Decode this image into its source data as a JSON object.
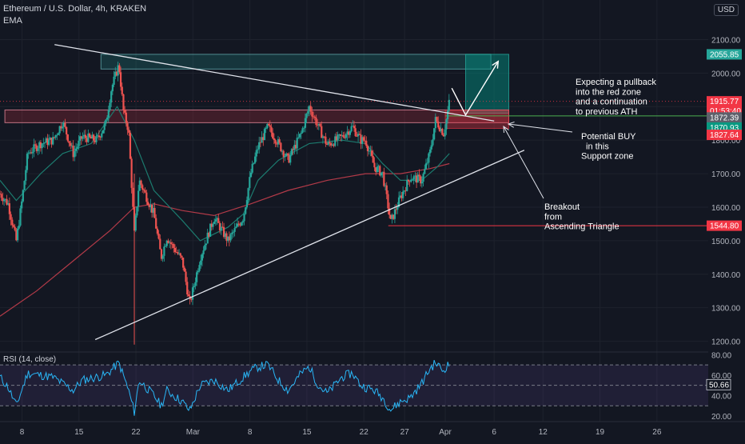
{
  "header": {
    "symbol": "Ethereum / U.S. Dollar, 4h, KRAKEN",
    "indicator": "EMA",
    "currency": "USD"
  },
  "chart_data": {
    "type": "candlestick",
    "price_axis": {
      "ticks": [
        "2100.00",
        "2000.00",
        "1900.00",
        "1800.00",
        "1700.00",
        "1600.00",
        "1500.00",
        "1400.00",
        "1300.00",
        "1200.00"
      ],
      "tick_values": [
        2100,
        2000,
        1900,
        1800,
        1700,
        1600,
        1500,
        1400,
        1300,
        1200
      ],
      "range": [
        1168,
        2218
      ]
    },
    "time_axis": {
      "ticks": [
        "8",
        "15",
        "22",
        "Mar",
        "8",
        "15",
        "22",
        "27",
        "Apr",
        "6",
        "12",
        "19",
        "26"
      ],
      "tick_days": [
        8,
        15,
        22,
        29,
        36,
        43,
        50,
        55,
        60,
        66,
        72,
        79,
        86
      ],
      "day_range": [
        5.3,
        92.3
      ],
      "note": "day 29 = Mar 1, day 60 = Apr 1 (Feb = days 1-28)"
    },
    "price_path": [
      {
        "day": 5.3,
        "price": 1640
      },
      {
        "day": 6.3,
        "price": 1610
      },
      {
        "day": 7.3,
        "price": 1500
      },
      {
        "day": 8.0,
        "price": 1620
      },
      {
        "day": 8.7,
        "price": 1760
      },
      {
        "day": 10.3,
        "price": 1790
      },
      {
        "day": 11.8,
        "price": 1800
      },
      {
        "day": 13.0,
        "price": 1855
      },
      {
        "day": 14.3,
        "price": 1760
      },
      {
        "day": 15.4,
        "price": 1810
      },
      {
        "day": 17.2,
        "price": 1800
      },
      {
        "day": 18.3,
        "price": 1850
      },
      {
        "day": 19.0,
        "price": 1955
      },
      {
        "day": 19.9,
        "price": 2025
      },
      {
        "day": 20.5,
        "price": 1880
      },
      {
        "day": 21.1,
        "price": 1830
      },
      {
        "day": 21.8,
        "price": 1520
      },
      {
        "day": 22.4,
        "price": 1680
      },
      {
        "day": 24.2,
        "price": 1580
      },
      {
        "day": 25.1,
        "price": 1450
      },
      {
        "day": 25.8,
        "price": 1510
      },
      {
        "day": 27.7,
        "price": 1440
      },
      {
        "day": 28.6,
        "price": 1310
      },
      {
        "day": 29.9,
        "price": 1450
      },
      {
        "day": 31.6,
        "price": 1570
      },
      {
        "day": 33.3,
        "price": 1500
      },
      {
        "day": 35.2,
        "price": 1570
      },
      {
        "day": 36.1,
        "price": 1700
      },
      {
        "day": 37.0,
        "price": 1780
      },
      {
        "day": 38.2,
        "price": 1840
      },
      {
        "day": 39.5,
        "price": 1790
      },
      {
        "day": 40.7,
        "price": 1740
      },
      {
        "day": 42.3,
        "price": 1820
      },
      {
        "day": 43.3,
        "price": 1900
      },
      {
        "day": 44.4,
        "price": 1840
      },
      {
        "day": 45.5,
        "price": 1785
      },
      {
        "day": 47.3,
        "price": 1810
      },
      {
        "day": 48.6,
        "price": 1840
      },
      {
        "day": 49.6,
        "price": 1800
      },
      {
        "day": 50.2,
        "price": 1800
      },
      {
        "day": 51.3,
        "price": 1720
      },
      {
        "day": 52.3,
        "price": 1700
      },
      {
        "day": 53.3,
        "price": 1555
      },
      {
        "day": 54.5,
        "price": 1630
      },
      {
        "day": 55.7,
        "price": 1690
      },
      {
        "day": 57.1,
        "price": 1680
      },
      {
        "day": 58.1,
        "price": 1760
      },
      {
        "day": 58.8,
        "price": 1860
      },
      {
        "day": 59.8,
        "price": 1820
      },
      {
        "day": 60.2,
        "price": 1870
      },
      {
        "day": 60.5,
        "price": 1916
      }
    ],
    "ema_short": [
      {
        "day": 5.3,
        "price": 1680
      },
      {
        "day": 7.3,
        "price": 1620
      },
      {
        "day": 10.3,
        "price": 1700
      },
      {
        "day": 13.0,
        "price": 1760
      },
      {
        "day": 16.5,
        "price": 1790
      },
      {
        "day": 19.7,
        "price": 1900
      },
      {
        "day": 21.8,
        "price": 1800
      },
      {
        "day": 24.2,
        "price": 1650
      },
      {
        "day": 27.7,
        "price": 1560
      },
      {
        "day": 29.9,
        "price": 1500
      },
      {
        "day": 33.3,
        "price": 1540
      },
      {
        "day": 35.2,
        "price": 1580
      },
      {
        "day": 37.0,
        "price": 1680
      },
      {
        "day": 39.5,
        "price": 1740
      },
      {
        "day": 43.3,
        "price": 1790
      },
      {
        "day": 47.3,
        "price": 1800
      },
      {
        "day": 50.2,
        "price": 1790
      },
      {
        "day": 52.3,
        "price": 1730
      },
      {
        "day": 54.5,
        "price": 1680
      },
      {
        "day": 57.1,
        "price": 1680
      },
      {
        "day": 59.0,
        "price": 1720
      },
      {
        "day": 60.5,
        "price": 1760
      }
    ],
    "ema_long": [
      {
        "day": 5.3,
        "price": 1275
      },
      {
        "day": 9.8,
        "price": 1350
      },
      {
        "day": 14.3,
        "price": 1440
      },
      {
        "day": 18.8,
        "price": 1530
      },
      {
        "day": 21.8,
        "price": 1600
      },
      {
        "day": 24.2,
        "price": 1610
      },
      {
        "day": 27.7,
        "price": 1590
      },
      {
        "day": 31.6,
        "price": 1575
      },
      {
        "day": 36.1,
        "price": 1610
      },
      {
        "day": 40.7,
        "price": 1650
      },
      {
        "day": 45.5,
        "price": 1680
      },
      {
        "day": 50.2,
        "price": 1700
      },
      {
        "day": 54.5,
        "price": 1700
      },
      {
        "day": 58.1,
        "price": 1715
      },
      {
        "day": 60.5,
        "price": 1730
      }
    ],
    "price_labels": [
      {
        "text": "2055.85",
        "value": 2055.85,
        "color": "#26a69a"
      },
      {
        "text": "1915.77",
        "value": 1915.77,
        "color": "#f23645"
      },
      {
        "text": "01:53:40",
        "value": 1895,
        "color": "#f23645"
      },
      {
        "text": "1872.39",
        "value": 1872.39,
        "color": "#5d606b"
      },
      {
        "text": "1870.93",
        "value": 1870.93,
        "color": "#089981"
      },
      {
        "text": "1827.64",
        "value": 1827.64,
        "color": "#f23645"
      },
      {
        "text": "1544.80",
        "value": 1544.8,
        "color": "#f23645"
      }
    ],
    "annotations": {
      "resistance_zone": {
        "day_from": 17.7,
        "day_to": 65.6,
        "price_from": 2012,
        "price_to": 2056
      },
      "support_zone": {
        "day_from": 5.9,
        "day_to": 67.8,
        "price_from": 1852,
        "price_to": 1890
      },
      "red_zone": {
        "day_from": 60.0,
        "day_to": 67.8,
        "price_from": 1835,
        "price_to": 1890
      },
      "target_box": {
        "day_from": 62.5,
        "day_to": 67.8,
        "price_from": 1880,
        "price_to": 2056
      },
      "horizontal_lines": [
        {
          "price": 1872.39,
          "day_from": 60.0,
          "color": "#4caf50"
        },
        {
          "price": 1544.8,
          "day_from": 53.0,
          "color": "#f23645"
        },
        {
          "price": 1915.77,
          "day_from": 5.3,
          "color": "#f23645",
          "dotted": true
        }
      ],
      "descending_line": [
        {
          "day": 12.0,
          "price": 2085
        },
        {
          "day": 66.0,
          "price": 1857
        }
      ],
      "ascending_line": [
        {
          "day": 17.0,
          "price": 1205
        },
        {
          "day": 69.7,
          "price": 1770
        }
      ],
      "projection": [
        {
          "day": 60.8,
          "price": 1955
        },
        {
          "day": 62.5,
          "price": 1875
        },
        {
          "day": 66.5,
          "price": 2035
        }
      ],
      "notes": [
        {
          "lines": [
            "Expecting a pullback",
            "into the red zone",
            "and a continuation",
            "to previous ATH"
          ]
        },
        {
          "lines": [
            "Potential BUY",
            "in this",
            "Support zone"
          ]
        },
        {
          "lines": [
            "Breakout",
            "from",
            "Ascending Triangle"
          ]
        }
      ]
    },
    "rsi": {
      "label": "RSI (14, close)",
      "ticks": [
        "80.00",
        "60.00",
        "40.00",
        "20.00"
      ],
      "tick_values": [
        80,
        60,
        40,
        20
      ],
      "range": [
        14.5,
        82.6
      ],
      "levels": [
        70,
        50,
        30
      ],
      "current": "50.66",
      "current_value": 50.66,
      "path": [
        {
          "day": 5.3,
          "price": 58
        },
        {
          "day": 6.3,
          "price": 48
        },
        {
          "day": 7.3,
          "price": 30
        },
        {
          "day": 8.7,
          "price": 62
        },
        {
          "day": 11.8,
          "price": 58
        },
        {
          "day": 14.3,
          "price": 45
        },
        {
          "day": 15.4,
          "price": 55
        },
        {
          "day": 18.3,
          "price": 60
        },
        {
          "day": 19.9,
          "price": 72
        },
        {
          "day": 21.1,
          "price": 45
        },
        {
          "day": 21.8,
          "price": 24
        },
        {
          "day": 22.4,
          "price": 55
        },
        {
          "day": 24.2,
          "price": 40
        },
        {
          "day": 25.1,
          "price": 30
        },
        {
          "day": 25.8,
          "price": 45
        },
        {
          "day": 27.7,
          "price": 34
        },
        {
          "day": 28.6,
          "price": 25
        },
        {
          "day": 29.9,
          "price": 50
        },
        {
          "day": 31.6,
          "price": 55
        },
        {
          "day": 33.3,
          "price": 45
        },
        {
          "day": 35.2,
          "price": 58
        },
        {
          "day": 36.1,
          "price": 64
        },
        {
          "day": 37.0,
          "price": 68
        },
        {
          "day": 38.2,
          "price": 70
        },
        {
          "day": 39.5,
          "price": 55
        },
        {
          "day": 40.7,
          "price": 45
        },
        {
          "day": 42.3,
          "price": 62
        },
        {
          "day": 43.3,
          "price": 68
        },
        {
          "day": 44.4,
          "price": 50
        },
        {
          "day": 45.5,
          "price": 42
        },
        {
          "day": 47.3,
          "price": 58
        },
        {
          "day": 48.6,
          "price": 62
        },
        {
          "day": 49.6,
          "price": 50
        },
        {
          "day": 51.3,
          "price": 45
        },
        {
          "day": 52.3,
          "price": 38
        },
        {
          "day": 53.3,
          "price": 26
        },
        {
          "day": 54.5,
          "price": 34
        },
        {
          "day": 55.7,
          "price": 38
        },
        {
          "day": 57.1,
          "price": 52
        },
        {
          "day": 58.1,
          "price": 66
        },
        {
          "day": 58.8,
          "price": 72
        },
        {
          "day": 59.8,
          "price": 64
        },
        {
          "day": 60.2,
          "price": 70
        },
        {
          "day": 60.5,
          "price": 69
        }
      ]
    }
  }
}
